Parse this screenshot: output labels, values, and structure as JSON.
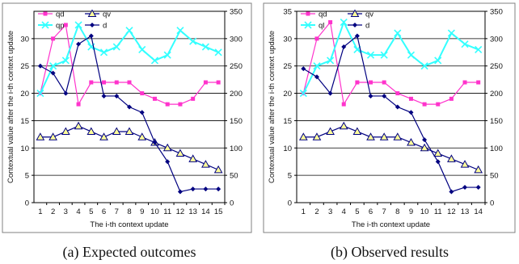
{
  "figure": {
    "captions": [
      "(a) Expected outcomes",
      "(b) Observed results"
    ]
  },
  "colors": {
    "qd": "#ff33cc",
    "qv": "#000080",
    "qp": "#33ffff",
    "d": "#000080",
    "marker_fill": "#ffff99",
    "grid": "#000000",
    "frame": "#808080"
  },
  "chart_data": [
    {
      "type": "line",
      "title": "",
      "caption": "(a) Expected outcomes",
      "xlabel": "The i-th context update",
      "ylabel": "Contextual value after the i-th context update",
      "categories": [
        "1",
        "2",
        "3",
        "4",
        "5",
        "6",
        "7",
        "8",
        "9",
        "10",
        "11",
        "12",
        "13",
        "14",
        "15"
      ],
      "xlim": [
        1,
        15
      ],
      "ylim": [
        0,
        35
      ],
      "yticks": [
        0,
        5,
        10,
        15,
        20,
        25,
        30
      ],
      "y2lim": [
        0,
        350
      ],
      "y2ticks": [
        0,
        50,
        100,
        150,
        200,
        250,
        300,
        350
      ],
      "grid": true,
      "legend_position": "top-left",
      "legend": [
        "qd",
        "qv",
        "qp",
        "d"
      ],
      "series": [
        {
          "name": "qd",
          "axis": "left",
          "marker": "square",
          "color": "#ff33cc",
          "values": [
            20,
            30,
            32.5,
            18,
            22,
            22,
            22,
            22,
            20,
            19,
            18,
            18,
            19,
            22,
            22
          ]
        },
        {
          "name": "qv",
          "axis": "left",
          "marker": "triangle",
          "color": "#000080",
          "values": [
            12,
            12,
            13,
            14,
            13,
            12,
            13,
            13,
            12,
            11,
            10,
            9,
            8,
            7,
            6
          ]
        },
        {
          "name": "qp",
          "axis": "left",
          "marker": "x",
          "color": "#33ffff",
          "values": [
            20,
            25,
            26,
            32.5,
            28.5,
            27.5,
            28.5,
            31.5,
            28,
            26,
            27,
            31.5,
            29.5,
            28.5,
            27.5
          ]
        },
        {
          "name": "d",
          "axis": "right",
          "marker": "diamond",
          "color": "#000080",
          "values": [
            250,
            237,
            200,
            290,
            305,
            195,
            195,
            175,
            165,
            110,
            75,
            20,
            25,
            25,
            25
          ]
        }
      ]
    },
    {
      "type": "line",
      "title": "",
      "caption": "(b) Observed results",
      "xlabel": "The i-th context update",
      "ylabel": "Contextual value after the i-th context update",
      "categories": [
        "1",
        "2",
        "3",
        "4",
        "5",
        "6",
        "7",
        "8",
        "9",
        "10",
        "11",
        "12",
        "13",
        "14"
      ],
      "xlim": [
        1,
        14
      ],
      "ylim": [
        0,
        35
      ],
      "yticks": [
        0,
        5,
        10,
        15,
        20,
        25,
        30,
        35
      ],
      "y2lim": [
        0,
        350
      ],
      "y2ticks": [
        0,
        50,
        100,
        150,
        200,
        250,
        300,
        350
      ],
      "grid": true,
      "legend_position": "top-left",
      "legend": [
        "qd",
        "qv",
        "ql",
        "d"
      ],
      "series": [
        {
          "name": "qd",
          "axis": "left",
          "marker": "square",
          "color": "#ff33cc",
          "values": [
            20,
            30,
            33,
            18,
            22,
            22,
            22,
            20,
            19,
            18,
            18,
            19,
            22,
            22
          ]
        },
        {
          "name": "qv",
          "axis": "left",
          "marker": "triangle",
          "color": "#000080",
          "values": [
            12,
            12,
            13,
            14,
            13,
            12,
            12,
            12,
            11,
            10,
            9,
            8,
            7,
            6
          ]
        },
        {
          "name": "ql",
          "axis": "left",
          "marker": "x",
          "color": "#33ffff",
          "values": [
            20,
            25,
            26,
            33,
            28,
            27,
            27,
            31,
            27,
            25,
            26,
            31,
            29,
            28
          ]
        },
        {
          "name": "d",
          "axis": "right",
          "marker": "diamond",
          "color": "#000080",
          "values": [
            245,
            230,
            200,
            285,
            305,
            195,
            195,
            175,
            165,
            115,
            75,
            20,
            28,
            28
          ]
        }
      ]
    }
  ]
}
